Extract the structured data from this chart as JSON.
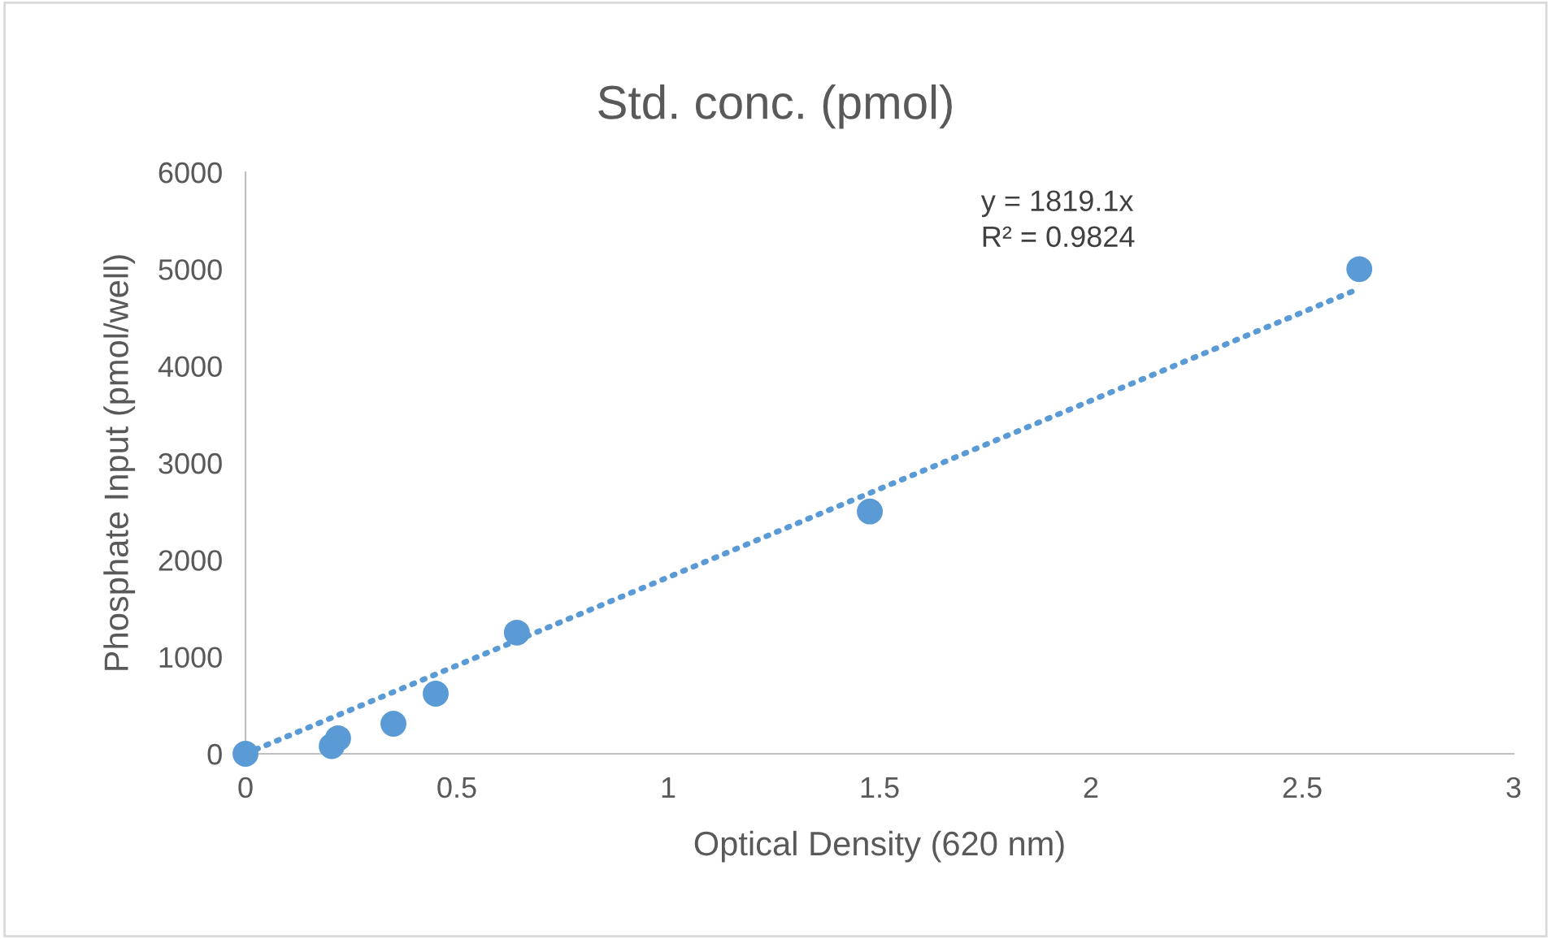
{
  "chart_data": {
    "type": "scatter",
    "title": "Std. conc. (pmol)",
    "xlabel": "Optical Density (620 nm)",
    "ylabel": "Phosphate Input (pmol/well)",
    "series": [
      {
        "color": "#5b9bd5",
        "x": [
          0,
          0.204,
          0.219,
          0.35,
          0.45,
          0.642,
          1.477,
          2.635
        ],
        "values": [
          0,
          80,
          160,
          310,
          620,
          1250,
          2500,
          5000
        ]
      },
      {
        "type": "line",
        "color": "#5b9bd5",
        "x": [
          0,
          2.635
        ],
        "values": [
          0,
          4800
        ],
        "line_style": "dotted",
        "marker": "none"
      }
    ],
    "annotations": [
      "y = 1819.1x\nR² = 0.9824"
    ],
    "xlim": [
      0,
      3
    ],
    "xticks": [
      0,
      0.5,
      1,
      1.5,
      2,
      2.5,
      3
    ],
    "ylim": [
      0,
      6000
    ],
    "yticks": [
      0,
      1000,
      2000,
      3000,
      4000,
      5000,
      6000
    ],
    "marker": "circle",
    "grid": false,
    "legend": false
  }
}
